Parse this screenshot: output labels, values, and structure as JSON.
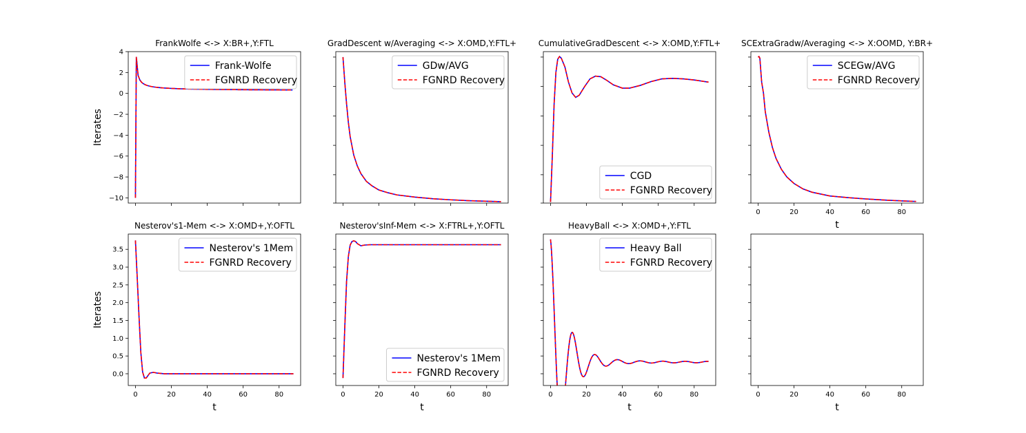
{
  "figure": {
    "xlabel": "t",
    "ylabel": "Iterates",
    "colors": {
      "method": "#0000ff",
      "recovery": "#ff0000",
      "axes": "#000000",
      "background": "#ffffff"
    }
  },
  "chart_data": [
    {
      "type": "line",
      "title": "FrankWolfe <-> X:BR+,Y:FTL",
      "xlim": [
        -4,
        92
      ],
      "ylim": [
        -10.5,
        4
      ],
      "xticks": [
        0,
        20,
        40,
        60,
        80
      ],
      "yticks": [
        4,
        2,
        0,
        -2,
        -4,
        -6,
        -8,
        -10
      ],
      "show_xticklabels": false,
      "show_yticklabels": true,
      "show_xlabel": false,
      "show_ylabel": true,
      "legend_loc": "upper right",
      "series": [
        {
          "name": "Frank-Wolfe",
          "style": "solid",
          "color": "#0000ff"
        },
        {
          "name": "FGNRD Recovery",
          "style": "dashed",
          "color": "#ff0000"
        }
      ],
      "curve": {
        "kind": "damped_oscillation",
        "x_start": 0,
        "x_end": 88,
        "start": -10,
        "peak": 3.3,
        "center": 0.05,
        "period": 2,
        "envelope_end": 0.2
      }
    },
    {
      "type": "line",
      "title": "GradDescent w/Averaging <-> X:OMD,Y:FTL+",
      "xlim": [
        -4,
        92
      ],
      "ylim": [
        -10.1,
        3.8
      ],
      "xticks": [
        0,
        20,
        40,
        60,
        80
      ],
      "yticks": [
        3.3,
        0.6,
        -2.1,
        -4.8,
        -7.5,
        -10.1
      ],
      "show_xticklabels": false,
      "show_yticklabels": false,
      "show_xlabel": false,
      "show_ylabel": false,
      "legend_loc": "upper right",
      "series": [
        {
          "name": "GDw/AVG",
          "style": "solid",
          "color": "#0000ff"
        },
        {
          "name": "FGNRD Recovery",
          "style": "dashed",
          "color": "#ff0000"
        }
      ],
      "points": [
        [
          0,
          3.3
        ],
        [
          1,
          1.0
        ],
        [
          2,
          -1.0
        ],
        [
          3,
          -2.7
        ],
        [
          4,
          -4.0
        ],
        [
          6,
          -5.7
        ],
        [
          8,
          -6.7
        ],
        [
          10,
          -7.4
        ],
        [
          13,
          -8.1
        ],
        [
          16,
          -8.5
        ],
        [
          20,
          -8.9
        ],
        [
          25,
          -9.15
        ],
        [
          30,
          -9.35
        ],
        [
          40,
          -9.55
        ],
        [
          50,
          -9.7
        ],
        [
          60,
          -9.8
        ],
        [
          70,
          -9.88
        ],
        [
          80,
          -9.93
        ],
        [
          88,
          -9.97
        ]
      ]
    },
    {
      "type": "line",
      "title": "CumulativeGradDescent <-> X:OMD,Y:FTL+",
      "xlim": [
        -4,
        92
      ],
      "ylim": [
        -10.1,
        3.8
      ],
      "xticks": [
        0,
        20,
        40,
        60,
        80
      ],
      "yticks": [
        3.3,
        0.6,
        -2.1,
        -4.8,
        -7.5,
        -10.1
      ],
      "show_xticklabels": false,
      "show_yticklabels": false,
      "show_xlabel": false,
      "show_ylabel": false,
      "legend_loc": "lower right",
      "series": [
        {
          "name": "CGD",
          "style": "solid",
          "color": "#0000ff"
        },
        {
          "name": "FGNRD Recovery",
          "style": "dashed",
          "color": "#ff0000"
        }
      ],
      "points": [
        [
          0,
          -10
        ],
        [
          1,
          -5.8
        ],
        [
          2,
          -1.0
        ],
        [
          3,
          1.9
        ],
        [
          4,
          3.1
        ],
        [
          5,
          3.35
        ],
        [
          6,
          3.2
        ],
        [
          8,
          2.4
        ],
        [
          10,
          1.0
        ],
        [
          12,
          0.0
        ],
        [
          14,
          -0.4
        ],
        [
          16,
          -0.2
        ],
        [
          19,
          0.6
        ],
        [
          22,
          1.3
        ],
        [
          25,
          1.55
        ],
        [
          28,
          1.5
        ],
        [
          31,
          1.2
        ],
        [
          35,
          0.75
        ],
        [
          40,
          0.45
        ],
        [
          44,
          0.45
        ],
        [
          50,
          0.7
        ],
        [
          56,
          1.05
        ],
        [
          62,
          1.3
        ],
        [
          68,
          1.35
        ],
        [
          74,
          1.3
        ],
        [
          80,
          1.2
        ],
        [
          88,
          1.0
        ]
      ]
    },
    {
      "type": "line",
      "title": "SCExtraGradw/Averaging <-> X:OOMD, Y:BR+",
      "xlim": [
        -4,
        92
      ],
      "ylim": [
        -10.1,
        3.8
      ],
      "xticks": [
        0,
        20,
        40,
        60,
        80
      ],
      "yticks": [
        3.3,
        0.6,
        -2.1,
        -4.8,
        -7.5,
        -10.1
      ],
      "show_xticklabels": true,
      "show_yticklabels": false,
      "show_xlabel": true,
      "show_ylabel": false,
      "legend_loc": "upper right",
      "series": [
        {
          "name": "SCEGw/AVG",
          "style": "solid",
          "color": "#0000ff"
        },
        {
          "name": "FGNRD Recovery",
          "style": "dashed",
          "color": "#ff0000"
        }
      ],
      "points": [
        [
          0,
          3.3
        ],
        [
          0.5,
          3.35
        ],
        [
          1,
          3.2
        ],
        [
          2,
          1.0
        ],
        [
          3,
          0.0
        ],
        [
          4,
          -1.7
        ],
        [
          6,
          -3.6
        ],
        [
          8,
          -5.0
        ],
        [
          10,
          -6.0
        ],
        [
          13,
          -7.0
        ],
        [
          16,
          -7.7
        ],
        [
          20,
          -8.3
        ],
        [
          25,
          -8.8
        ],
        [
          30,
          -9.1
        ],
        [
          40,
          -9.45
        ],
        [
          50,
          -9.6
        ],
        [
          60,
          -9.72
        ],
        [
          70,
          -9.82
        ],
        [
          80,
          -9.9
        ],
        [
          88,
          -9.95
        ]
      ]
    },
    {
      "type": "line",
      "title": "Nesterov's1-Mem <-> X:OMD+,Y:OFTL",
      "xlim": [
        -4,
        92
      ],
      "ylim": [
        -0.33,
        3.93
      ],
      "xticks": [
        0,
        20,
        40,
        60,
        80
      ],
      "yticks": [
        0.0,
        0.5,
        1.0,
        1.5,
        2.0,
        2.5,
        3.0,
        3.5
      ],
      "show_xticklabels": true,
      "show_yticklabels": true,
      "show_xlabel": true,
      "show_ylabel": true,
      "legend_loc": "upper right",
      "series": [
        {
          "name": "Nesterov's 1Mem",
          "style": "solid",
          "color": "#0000ff"
        },
        {
          "name": "FGNRD Recovery",
          "style": "dashed",
          "color": "#ff0000"
        }
      ],
      "points": [
        [
          0,
          3.75
        ],
        [
          1,
          2.7
        ],
        [
          2,
          1.6
        ],
        [
          3,
          0.6
        ],
        [
          4,
          0.05
        ],
        [
          5,
          -0.12
        ],
        [
          6,
          -0.12
        ],
        [
          7,
          -0.05
        ],
        [
          8,
          0.02
        ],
        [
          10,
          0.04
        ],
        [
          12,
          0.02
        ],
        [
          16,
          0.0
        ],
        [
          88,
          0.0
        ]
      ]
    },
    {
      "type": "line",
      "title": "Nesterov'sInf-Mem <-> X:FTRL+,Y:OFTL",
      "xlim": [
        -4,
        92
      ],
      "ylim": [
        -0.33,
        3.93
      ],
      "xticks": [
        0,
        20,
        40,
        60,
        80
      ],
      "yticks": [
        0.0,
        0.5,
        1.0,
        1.5,
        2.0,
        2.5,
        3.0,
        3.5
      ],
      "show_xticklabels": true,
      "show_yticklabels": false,
      "show_xlabel": true,
      "show_ylabel": false,
      "legend_loc": "lower right",
      "series": [
        {
          "name": "Nesterov's 1Mem",
          "style": "solid",
          "color": "#0000ff"
        },
        {
          "name": "FGNRD Recovery",
          "style": "dashed",
          "color": "#ff0000"
        }
      ],
      "points": [
        [
          0,
          -0.12
        ],
        [
          1,
          1.3
        ],
        [
          2,
          2.6
        ],
        [
          3,
          3.3
        ],
        [
          4,
          3.62
        ],
        [
          5,
          3.72
        ],
        [
          6,
          3.74
        ],
        [
          7,
          3.72
        ],
        [
          8,
          3.66
        ],
        [
          10,
          3.6
        ],
        [
          12,
          3.62
        ],
        [
          15,
          3.63
        ],
        [
          88,
          3.63
        ]
      ]
    },
    {
      "type": "line",
      "title": "HeavyBall <-> X:OMD+,Y:FTL",
      "xlim": [
        -4,
        92
      ],
      "ylim": [
        -0.33,
        3.93
      ],
      "xticks": [
        0,
        20,
        40,
        60,
        80
      ],
      "yticks": [
        0.0,
        0.5,
        1.0,
        1.5,
        2.0,
        2.5,
        3.0,
        3.5
      ],
      "show_xticklabels": true,
      "show_yticklabels": false,
      "show_xlabel": true,
      "show_ylabel": false,
      "legend_loc": "upper right",
      "series": [
        {
          "name": "Heavy Ball",
          "style": "solid",
          "color": "#0000ff"
        },
        {
          "name": "FGNRD Recovery",
          "style": "dashed",
          "color": "#ff0000"
        }
      ],
      "curve": {
        "kind": "damped_cos",
        "x_start": 0,
        "x_end": 88,
        "start": 3.75,
        "center": 0.33,
        "period": 12.5,
        "decay": 8.5,
        "envelope_end": 0.03
      }
    },
    {
      "type": "line",
      "title": "",
      "xlim": [
        -4,
        92
      ],
      "ylim": [
        -0.33,
        3.93
      ],
      "xticks": [
        0,
        20,
        40,
        60,
        80
      ],
      "yticks": [
        0.0,
        0.5,
        1.0,
        1.5,
        2.0,
        2.5,
        3.0,
        3.5
      ],
      "show_xticklabels": true,
      "show_yticklabels": false,
      "show_xlabel": true,
      "show_ylabel": false,
      "legend_loc": "none",
      "series": []
    }
  ]
}
